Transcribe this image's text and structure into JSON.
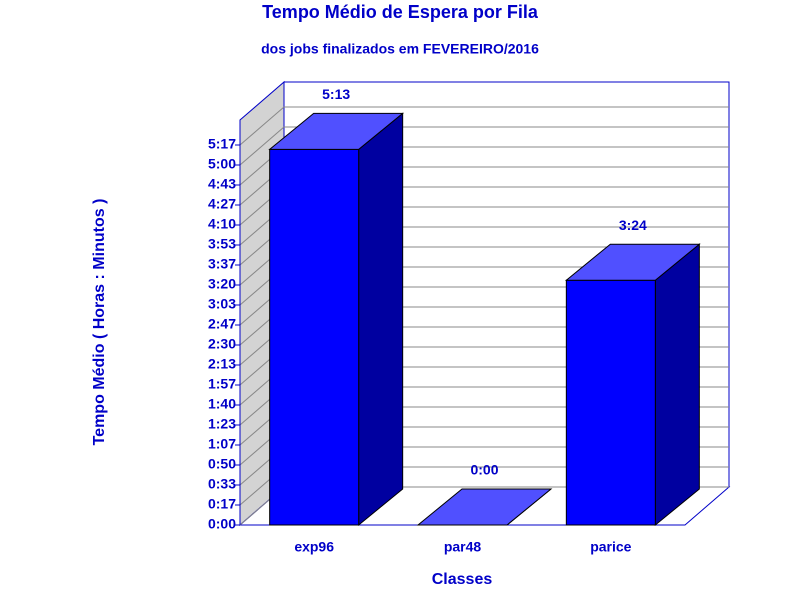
{
  "chart_data": {
    "type": "bar3d",
    "title": "Tempo Médio de Espera por Fila",
    "subtitle": "dos jobs finalizados em FEVEREIRO/2016",
    "x_label": "Classes",
    "y_label": "Tempo Médio ( Horas : Minutos )",
    "categories": [
      "exp96",
      "par48",
      "parice"
    ],
    "values": [
      313,
      0,
      204
    ],
    "value_labels": [
      "5:13",
      "0:00",
      "3:24"
    ],
    "color": "#0000ff",
    "ylim": [
      0,
      337.5
    ],
    "yticks": [
      {
        "value": 0,
        "label": "0:00"
      },
      {
        "value": 16.67,
        "label": "0:17"
      },
      {
        "value": 33.33,
        "label": "0:33"
      },
      {
        "value": 50,
        "label": "0:50"
      },
      {
        "value": 66.67,
        "label": "1:07"
      },
      {
        "value": 83.33,
        "label": "1:23"
      },
      {
        "value": 100,
        "label": "1:40"
      },
      {
        "value": 116.67,
        "label": "1:57"
      },
      {
        "value": 133.33,
        "label": "2:13"
      },
      {
        "value": 150,
        "label": "2:30"
      },
      {
        "value": 166.67,
        "label": "2:47"
      },
      {
        "value": 183.33,
        "label": "3:03"
      },
      {
        "value": 200,
        "label": "3:20"
      },
      {
        "value": 216.67,
        "label": "3:37"
      },
      {
        "value": 233.33,
        "label": "3:53"
      },
      {
        "value": 250,
        "label": "4:10"
      },
      {
        "value": 266.67,
        "label": "4:27"
      },
      {
        "value": 283.33,
        "label": "4:43"
      },
      {
        "value": 300,
        "label": "5:00"
      },
      {
        "value": 316.67,
        "label": "5:17"
      }
    ],
    "grid": true
  }
}
